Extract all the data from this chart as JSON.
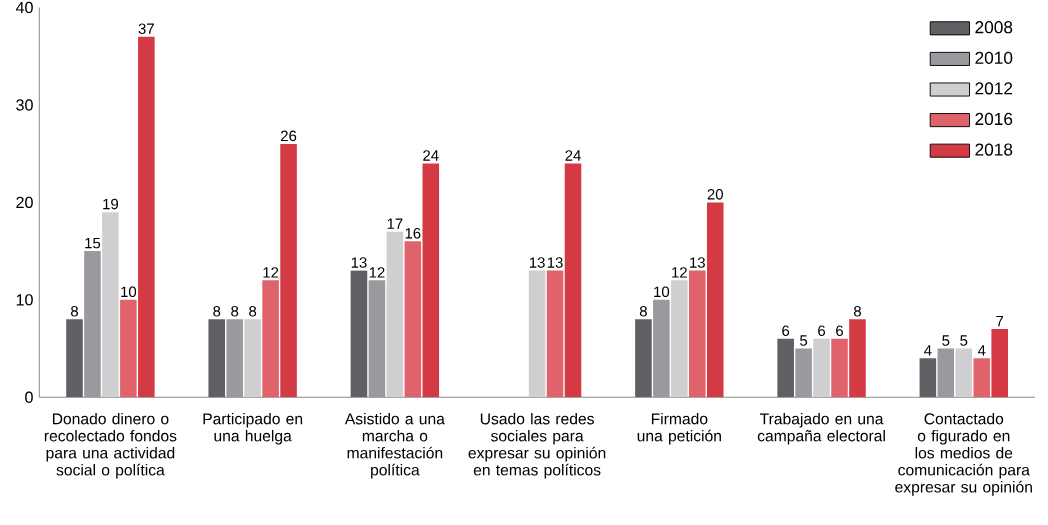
{
  "chart_data": {
    "type": "bar",
    "categories": [
      "Donado dinero o recolectado fondos para una actividad social o política",
      "Participado en una huelga",
      "Asistido a una marcha o manifestación política",
      "Usado las redes sociales para expresar su opinión en temas políticos",
      "Firmado una petición",
      "Trabajado en una campaña electoral",
      "Contactado o figurado en los medios de comunicación para expresar su opinión"
    ],
    "series": [
      {
        "name": "2008",
        "color": "#5f5f64",
        "values": [
          8,
          8,
          13,
          null,
          8,
          6,
          4
        ]
      },
      {
        "name": "2010",
        "color": "#9a9a9e",
        "values": [
          15,
          8,
          12,
          null,
          10,
          5,
          5
        ]
      },
      {
        "name": "2012",
        "color": "#cfcfd1",
        "values": [
          19,
          8,
          17,
          13,
          12,
          6,
          5
        ]
      },
      {
        "name": "2016",
        "color": "#e0636b",
        "values": [
          10,
          12,
          16,
          13,
          13,
          6,
          4
        ]
      },
      {
        "name": "2018",
        "color": "#d43a44",
        "values": [
          37,
          26,
          24,
          24,
          20,
          8,
          7
        ]
      }
    ],
    "ylim": [
      0,
      40
    ],
    "yticks": [
      0,
      10,
      20,
      30,
      40
    ],
    "data_labels": true,
    "legend": "top right",
    "grid": false
  }
}
